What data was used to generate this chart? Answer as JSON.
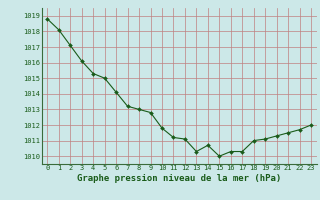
{
  "x": [
    0,
    1,
    2,
    3,
    4,
    5,
    6,
    7,
    8,
    9,
    10,
    11,
    12,
    13,
    14,
    15,
    16,
    17,
    18,
    19,
    20,
    21,
    22,
    23
  ],
  "y": [
    1018.8,
    1018.1,
    1017.1,
    1016.1,
    1015.3,
    1015.0,
    1014.1,
    1013.2,
    1013.0,
    1012.8,
    1011.8,
    1011.2,
    1011.1,
    1010.3,
    1010.7,
    1010.0,
    1010.3,
    1010.3,
    1011.0,
    1011.1,
    1011.3,
    1011.5,
    1011.7,
    1012.0
  ],
  "line_color": "#1a5c1a",
  "marker": "D",
  "marker_size": 2.0,
  "bg_color": "#cce8e8",
  "grid_color": "#c08080",
  "xlabel": "Graphe pression niveau de la mer (hPa)",
  "xlabel_color": "#1a5c1a",
  "tick_color": "#1a5c1a",
  "ylim": [
    1009.5,
    1019.5
  ],
  "xlim": [
    -0.5,
    23.5
  ],
  "yticks": [
    1010,
    1011,
    1012,
    1013,
    1014,
    1015,
    1016,
    1017,
    1018,
    1019
  ],
  "xticks": [
    0,
    1,
    2,
    3,
    4,
    5,
    6,
    7,
    8,
    9,
    10,
    11,
    12,
    13,
    14,
    15,
    16,
    17,
    18,
    19,
    20,
    21,
    22,
    23
  ]
}
